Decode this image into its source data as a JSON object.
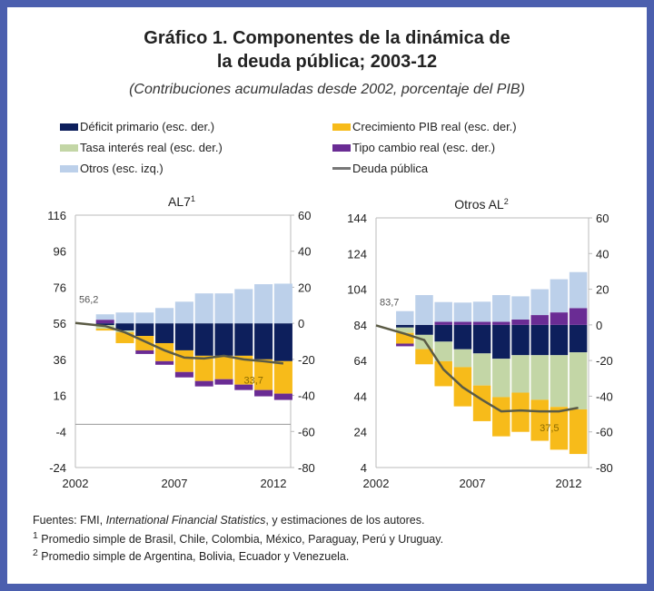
{
  "title_line1": "Gráfico 1. Componentes de la dinámica de",
  "title_line2": "la deuda pública; 2003-12",
  "subtitle": "(Contribuciones acumuladas desde 2002, porcentaje del PIB)",
  "legend": [
    {
      "label": "Déficit primario (esc. der.)",
      "color": "#0d1f5c"
    },
    {
      "label": "Crecimiento PIB real (esc. der.)",
      "color": "#f7bb1a"
    },
    {
      "label": "Tasa interés real (esc. der.)",
      "color": "#c3d6a6"
    },
    {
      "label": "Tipo cambio real (esc. der.)",
      "color": "#6a2c94"
    },
    {
      "label": "Otros (esc. izq.)",
      "color": "#bcd0ea"
    },
    {
      "label": "Deuda pública",
      "color": "#5b5b45"
    }
  ],
  "footer": {
    "sources_prefix": "Fuentes: FMI, ",
    "sources_italic": "International Financial Statistics",
    "sources_suffix": ", y estimaciones de los autores.",
    "note1_mark": "1",
    "note1": " Promedio simple de Brasil, Chile, Colombia, México, Paraguay, Perú y Uruguay.",
    "note2_mark": "2",
    "note2": " Promedio simple de Argentina, Bolivia, Ecuador y Venezuela."
  },
  "chart_data": [
    {
      "type": "bar",
      "stacked": true,
      "title": "AL7",
      "title_sup": "1",
      "x": [
        2003,
        2004,
        2005,
        2006,
        2007,
        2008,
        2009,
        2010,
        2011,
        2012
      ],
      "xticks": [
        "2002",
        "2007",
        "2012"
      ],
      "ylim_left": [
        -24,
        116
      ],
      "yticks_left": [
        "116",
        "96",
        "76",
        "56",
        "36",
        "16",
        "-4",
        "-24"
      ],
      "ylim_right": [
        -80,
        60
      ],
      "yticks_right": [
        "60",
        "40",
        "20",
        "0",
        "-20",
        "-40",
        "-60",
        "-80"
      ],
      "series": [
        {
          "name": "Déficit primario (esc. der.)",
          "values": [
            -1,
            -4,
            -7,
            -11,
            -15,
            -18,
            -18,
            -18,
            -20,
            -21
          ]
        },
        {
          "name": "Tasa interés real (esc. der.)",
          "values": [
            -2,
            -1,
            0,
            0,
            0,
            0,
            0,
            0,
            0,
            0
          ]
        },
        {
          "name": "Crecimiento PIB real (esc. der.)",
          "values": [
            -1,
            -6,
            -8,
            -10,
            -12,
            -14,
            -13,
            -16,
            -17,
            -18
          ]
        },
        {
          "name": "Tipo cambio real (esc. der.)",
          "values": [
            2,
            0,
            -2,
            -2,
            -3,
            -3,
            -3,
            -3,
            -3.5,
            -3.5
          ]
        },
        {
          "name": "Otros (esc. izq.)",
          "values": [
            3,
            6,
            6,
            8.5,
            12,
            16.6,
            16.6,
            19,
            21.7,
            22
          ]
        }
      ],
      "line": {
        "name": "Deuda pública",
        "x": [
          2002,
          2003,
          2004,
          2005,
          2006,
          2007,
          2008,
          2009,
          2010,
          2011,
          2012
        ],
        "values": [
          56.2,
          54.5,
          51,
          46,
          41,
          37,
          36.5,
          38,
          36,
          35,
          33.7
        ]
      },
      "labels": {
        "start": "56,2",
        "end": "33,7"
      }
    },
    {
      "type": "bar",
      "stacked": true,
      "title": "Otros AL",
      "title_sup": "2",
      "x": [
        2003,
        2004,
        2005,
        2006,
        2007,
        2008,
        2009,
        2010,
        2011,
        2012
      ],
      "xticks": [
        "2002",
        "2007",
        "2012"
      ],
      "ylim_left": [
        4,
        144
      ],
      "yticks_left": [
        "144",
        "124",
        "104",
        "84",
        "64",
        "44",
        "24",
        "4"
      ],
      "ylim_right": [
        -80,
        60
      ],
      "yticks_right": [
        "60",
        "40",
        "20",
        "0",
        "-20",
        "-40",
        "-60",
        "-80"
      ],
      "series": [
        {
          "name": "Déficit primario (esc. der.)",
          "values": [
            -1.5,
            -5.6,
            -9.4,
            -13.7,
            -16,
            -19,
            -17,
            -17,
            -17,
            -15.4
          ]
        },
        {
          "name": "Tasa interés real (esc. der.)",
          "values": [
            -3,
            -8,
            -11,
            -10,
            -18,
            -21.5,
            -21,
            -25,
            -29,
            -32
          ]
        },
        {
          "name": "Crecimiento PIB real (esc. der.)",
          "values": [
            -6,
            -8.5,
            -14,
            -22,
            -20,
            -22,
            -22,
            -23,
            -24,
            -25
          ]
        },
        {
          "name": "Tipo cambio real (esc. der.)",
          "values": [
            -1.5,
            0,
            1.7,
            1.7,
            1.7,
            1.7,
            3,
            5.5,
            7,
            9.4
          ]
        },
        {
          "name": "Otros (esc. izq.)",
          "values": [
            7.7,
            16.7,
            11.1,
            10.8,
            11.3,
            15,
            13,
            14.5,
            18.6,
            20.2
          ]
        }
      ],
      "line": {
        "name": "Deuda pública",
        "x": [
          2002,
          2003,
          2004,
          2005,
          2006,
          2007,
          2008,
          2009,
          2010,
          2011,
          2012
        ],
        "values": [
          83.7,
          79,
          75.5,
          59,
          49,
          42,
          35.5,
          36,
          35.5,
          35.5,
          37.5
        ]
      },
      "labels": {
        "start": "83,7",
        "end": "37,5"
      }
    }
  ]
}
